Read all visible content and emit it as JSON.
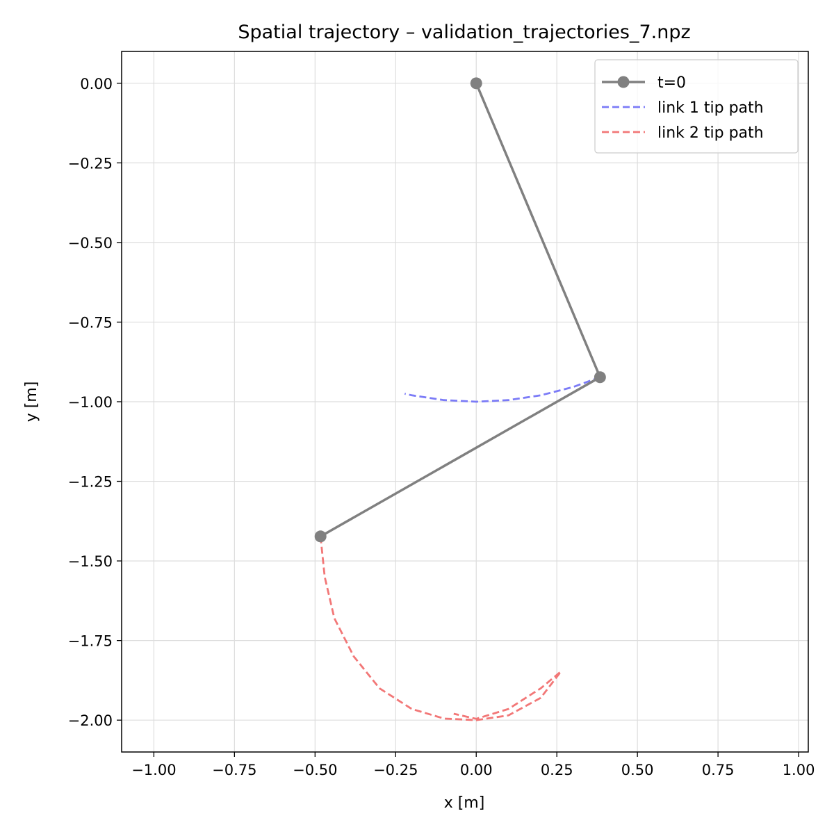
{
  "chart_data": {
    "type": "line",
    "title": "Spatial trajectory – validation_trajectories_7.npz",
    "xlabel": "x [m]",
    "ylabel": "y [m]",
    "xlim": [
      -1.1,
      1.03
    ],
    "ylim": [
      -2.1,
      0.1
    ],
    "xticks": [
      -1.0,
      -0.75,
      -0.5,
      -0.25,
      0.0,
      0.25,
      0.5,
      0.75,
      1.0
    ],
    "xtick_labels": [
      "−1.00",
      "−0.75",
      "−0.50",
      "−0.25",
      "0.00",
      "0.25",
      "0.50",
      "0.75",
      "1.00"
    ],
    "yticks": [
      0.0,
      -0.25,
      -0.5,
      -0.75,
      -1.0,
      -1.25,
      -1.5,
      -1.75,
      -2.0
    ],
    "ytick_labels": [
      "0.00",
      "−0.25",
      "−0.50",
      "−0.75",
      "−1.00",
      "−1.25",
      "−1.50",
      "−1.75",
      "−2.00"
    ],
    "grid": true,
    "legend_position": "top-right",
    "series": [
      {
        "name": "t=0",
        "style": "solid-with-markers",
        "color": "#808080",
        "x": [
          0.0,
          0.384,
          -0.483
        ],
        "y": [
          0.0,
          -0.923,
          -1.423
        ]
      },
      {
        "name": "link 1 tip path",
        "style": "dashed",
        "color": "#7b7bf7",
        "x": [
          0.384,
          0.3,
          0.2,
          0.1,
          0.0,
          -0.1,
          -0.2,
          -0.222
        ],
        "y": [
          -0.923,
          -0.954,
          -0.98,
          -0.995,
          -1.0,
          -0.995,
          -0.98,
          -0.975
        ]
      },
      {
        "name": "link 2 tip path",
        "style": "dashed",
        "color": "#f27777",
        "x": [
          -0.483,
          -0.47,
          -0.44,
          -0.38,
          -0.3,
          -0.2,
          -0.1,
          0.0,
          0.1,
          0.2,
          0.263,
          0.2,
          0.1,
          0.0,
          -0.07
        ],
        "y": [
          -1.423,
          -1.55,
          -1.68,
          -1.8,
          -1.9,
          -1.965,
          -1.995,
          -2.0,
          -1.985,
          -1.93,
          -1.847,
          -1.9,
          -1.965,
          -1.996,
          -1.98
        ]
      }
    ]
  }
}
